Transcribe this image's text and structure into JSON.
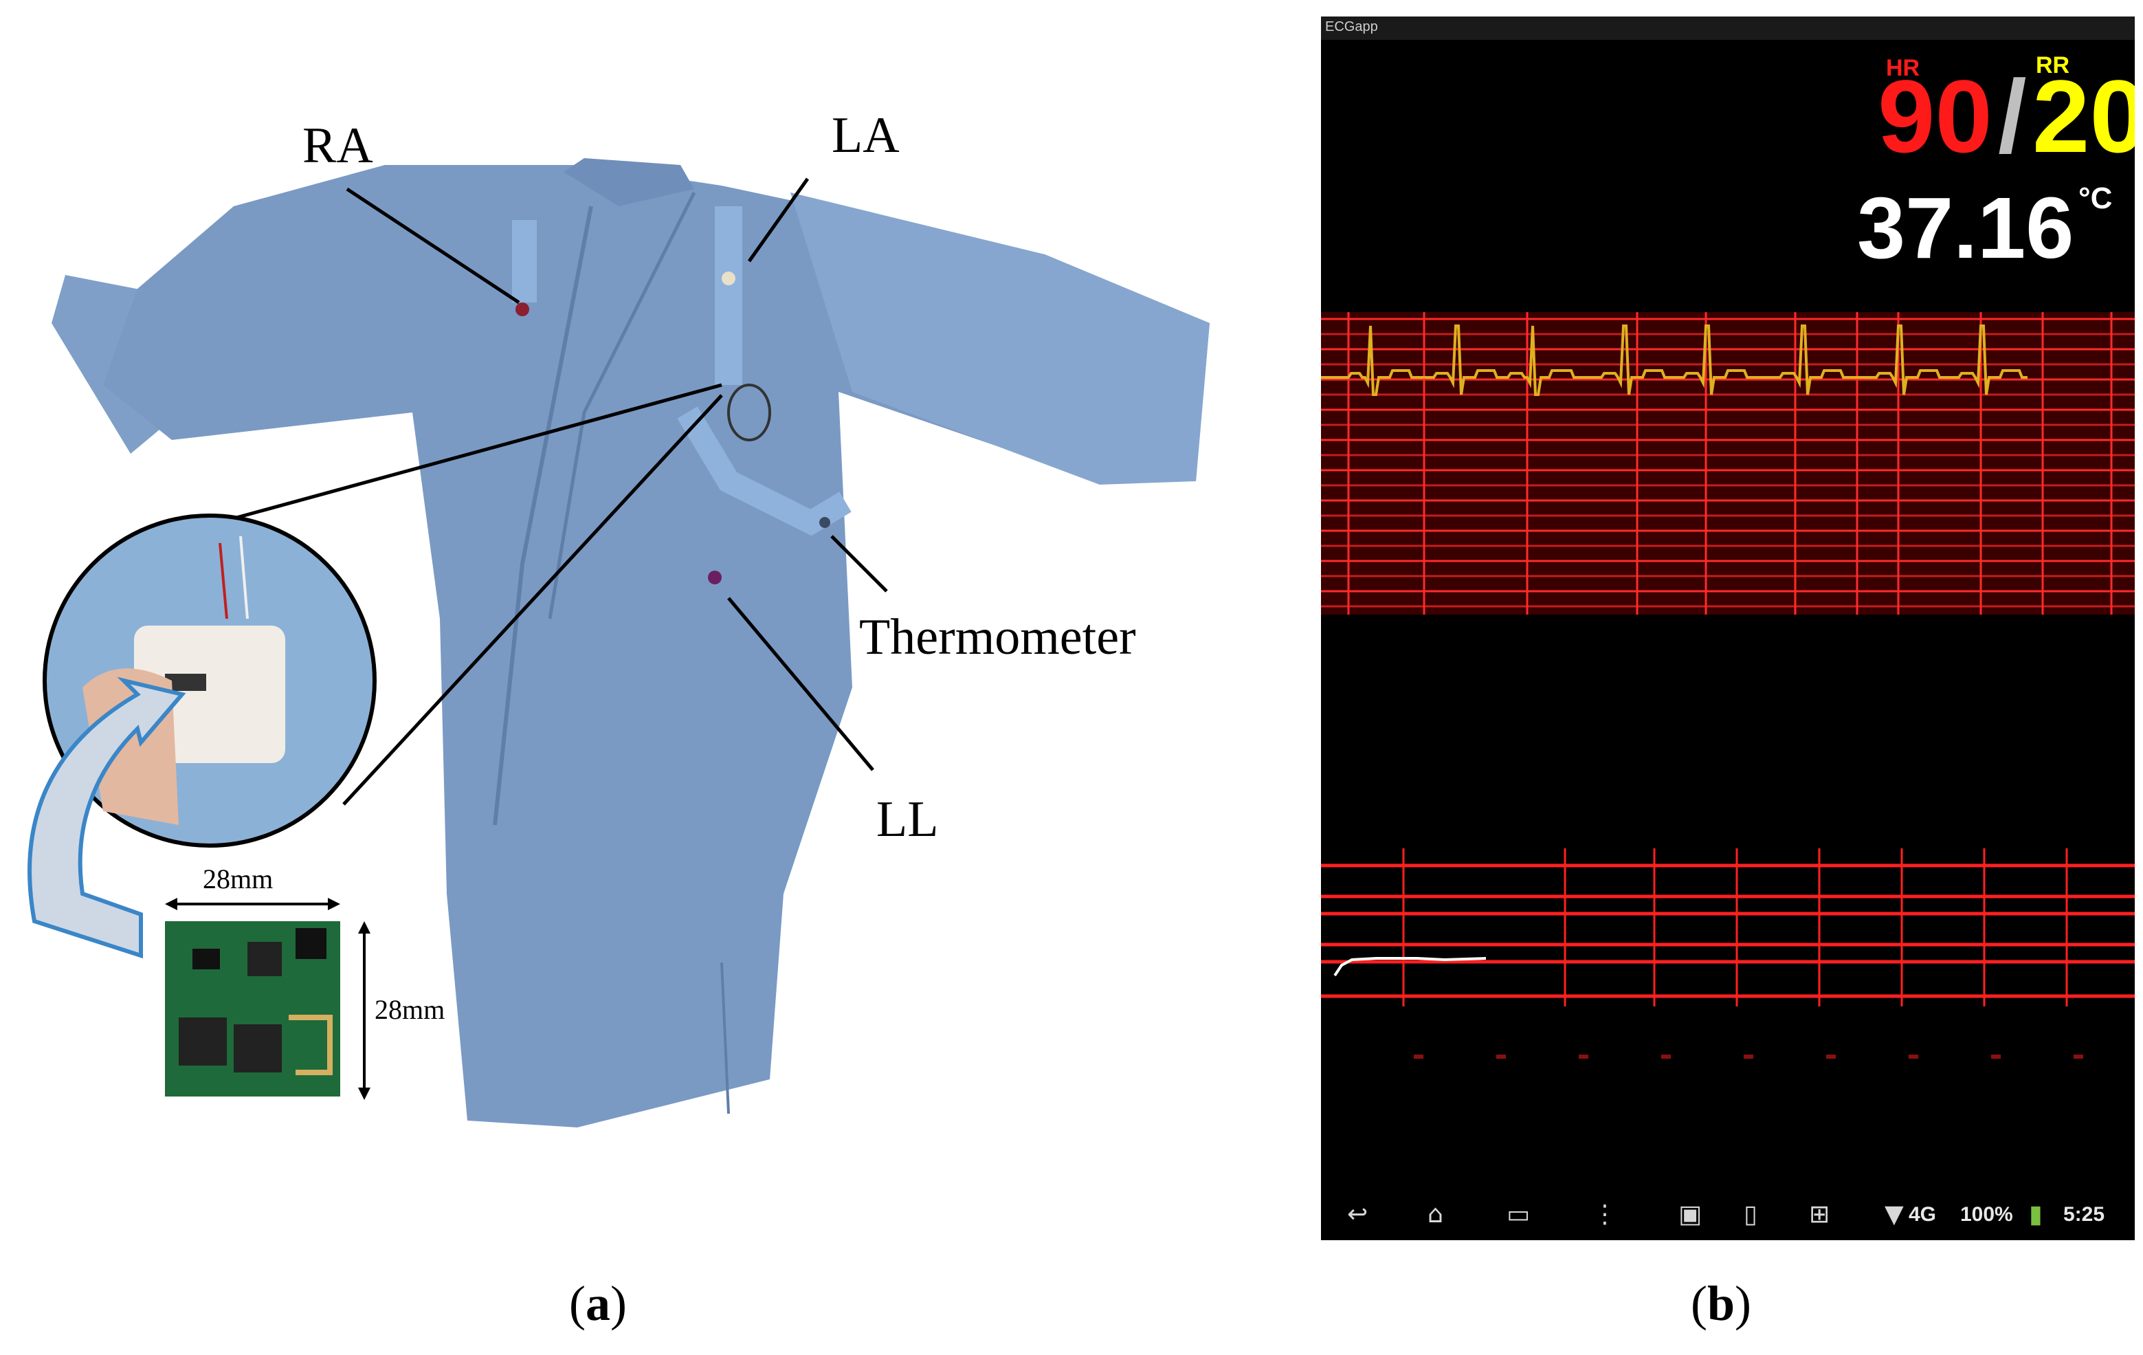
{
  "panel_a": {
    "labels": {
      "ra": "RA",
      "la": "LA",
      "thermometer": "Thermometer",
      "ll": "LL",
      "dim_width": "28mm",
      "dim_height": "28mm"
    },
    "caption": "a"
  },
  "panel_b": {
    "app_title": "ECGapp",
    "hr_label": "HR",
    "hr_value": "90",
    "separator": "/",
    "rr_label": "RR",
    "rr_value": "20",
    "temperature_value": "37.16",
    "temperature_unit": "°C",
    "status_bar": {
      "network": "4G",
      "battery": "100%",
      "time": "5:25"
    },
    "caption": "b"
  },
  "colors": {
    "grid_red": "#ff1a1a",
    "ecg_trace": "#e0b020",
    "hr": "#ff1a1a",
    "rr": "#ffff00",
    "gown": "#7f9fc8"
  }
}
